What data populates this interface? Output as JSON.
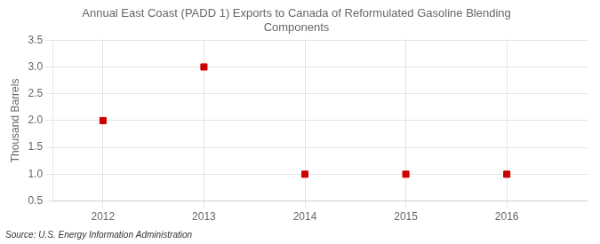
{
  "chart_data": {
    "type": "scatter",
    "title": "Annual East Coast (PADD 1) Exports to Canada of Reformulated Gasoline Blending\nComponents",
    "y_label": "Thousand Barrels",
    "source": "Source: U.S. Energy Information Administration",
    "x": [
      2012,
      2013,
      2014,
      2015,
      2016
    ],
    "values": [
      2.0,
      3.0,
      1.0,
      1.0,
      1.0
    ],
    "color": "#cc0000",
    "marker": "square",
    "xlim": [
      2011.5,
      2016.8
    ],
    "xticks": [
      2012,
      2013,
      2014,
      2015,
      2016
    ],
    "ylim": [
      0.5,
      3.5
    ],
    "yticks": [
      0.5,
      {
        "value": 1.0,
        "label": "1.0"
      },
      1.5,
      {
        "value": 2.0,
        "label": "2.0"
      },
      2.5,
      {
        "value": 3.0,
        "label": "3.0"
      },
      3.5
    ],
    "grid": true
  }
}
